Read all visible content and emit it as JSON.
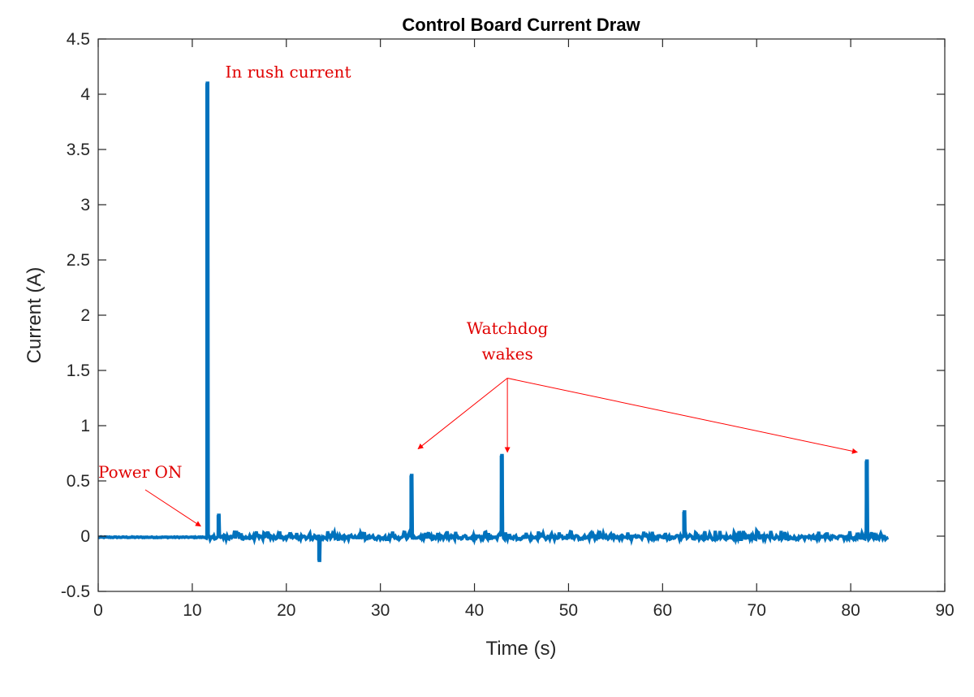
{
  "chart_data": {
    "type": "line",
    "title": "Control Board Current Draw",
    "xlabel": "Time (s)",
    "ylabel": "Current (A)",
    "xlim": [
      0,
      90
    ],
    "ylim": [
      -0.5,
      4.5
    ],
    "xticks": [
      0,
      10,
      20,
      30,
      40,
      50,
      60,
      70,
      80,
      90
    ],
    "yticks": [
      -0.5,
      0,
      0.5,
      1,
      1.5,
      2,
      2.5,
      3,
      3.5,
      4,
      4.5
    ],
    "xtick_labels": [
      "0",
      "10",
      "20",
      "30",
      "40",
      "50",
      "60",
      "70",
      "80",
      "90"
    ],
    "ytick_labels": [
      "-0.5",
      "0",
      "0.5",
      "1",
      "1.5",
      "2",
      "2.5",
      "3",
      "3.5",
      "4",
      "4.5"
    ],
    "grid": false,
    "series": [
      {
        "color": "#0072BD",
        "baseline": {
          "x_range": [
            0,
            11.5
          ],
          "value": -0.01
        },
        "noise": {
          "x_range": [
            12,
            84
          ],
          "min": -0.03,
          "max": 0.05
        },
        "spikes": [
          {
            "x": 11.6,
            "y": 4.1
          },
          {
            "x": 12.8,
            "y": 0.19
          },
          {
            "x": 23.5,
            "y": -0.22
          },
          {
            "x": 33.3,
            "y": 0.55
          },
          {
            "x": 42.9,
            "y": 0.73
          },
          {
            "x": 62.3,
            "y": 0.22
          },
          {
            "x": 81.7,
            "y": 0.68
          }
        ],
        "end_x": 84
      }
    ],
    "annotations": [
      {
        "text": "In rush current",
        "x": 13.5,
        "y": 4.15,
        "color": "#e00000"
      },
      {
        "text": "Power ON",
        "x": 0,
        "y": 0.53,
        "color": "#e00000",
        "arrow_from": [
          5,
          0.42
        ],
        "arrow_to": [
          10.9,
          0.09
        ]
      },
      {
        "text": "Watchdog",
        "x": 43.5,
        "y": 1.83,
        "color": "#e00000"
      },
      {
        "text": "wakes",
        "x": 43.5,
        "y": 1.6,
        "color": "#e00000",
        "arrows_from": [
          43.5,
          1.43
        ],
        "arrows_to": [
          [
            34,
            0.79
          ],
          [
            43.5,
            0.76
          ],
          [
            80.7,
            0.76
          ]
        ]
      }
    ]
  }
}
